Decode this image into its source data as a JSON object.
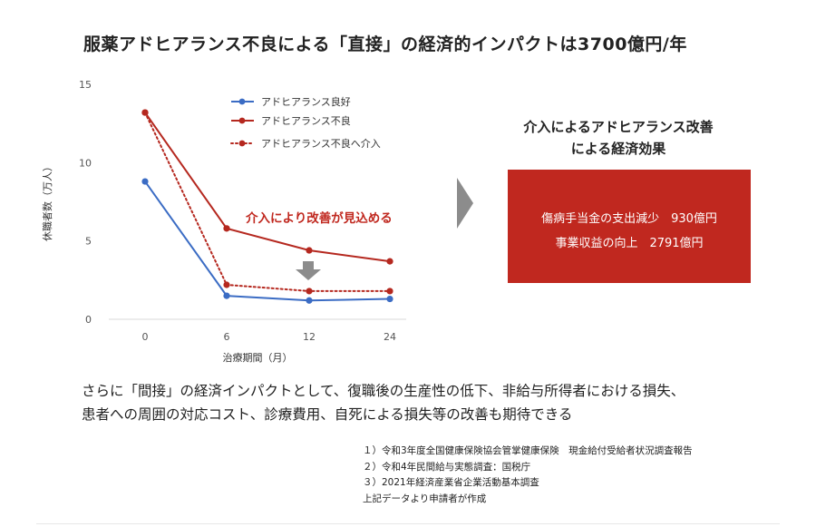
{
  "title": "服薬アドヒアランス不良による「直接」の経済的インパクトは3700億円/年",
  "chart_data": {
    "type": "line",
    "xlabel": "治療期間（月）",
    "ylabel": "休職者数（万人）",
    "x": [
      0,
      6,
      12,
      24
    ],
    "ylim": [
      0,
      15
    ],
    "yticks": [
      0,
      5,
      10,
      15
    ],
    "grid": false,
    "legend_position": "top-left",
    "series": [
      {
        "name": "アドヒアランス良好",
        "values": [
          8.8,
          1.5,
          1.2,
          1.3
        ],
        "color": "#3b6cc4",
        "style": "solid"
      },
      {
        "name": "アドヒアランス不良",
        "values": [
          13.2,
          5.8,
          4.4,
          3.7
        ],
        "color": "#b5281f",
        "style": "solid"
      },
      {
        "name": "アドヒアランス不良へ介入",
        "values": [
          13.2,
          2.2,
          1.8,
          1.8
        ],
        "color": "#b5281f",
        "style": "dotted"
      }
    ],
    "annotation": "介入により改善が見込める",
    "annotation_color": "#c0281f",
    "marker_arrow_color": "#8c8c8c"
  },
  "effect": {
    "heading_line1": "介入によるアドヒアランス改善",
    "heading_line2": "による経済効果",
    "item1": "傷病手当金の支出減少　930億円",
    "item2": "事業収益の向上　2791億円",
    "box_color": "#c0281f"
  },
  "body": {
    "line1": "さらに「間接」の経済インパクトとして、復職後の生産性の低下、非給与所得者における損失、",
    "line2": "患者への周囲の対応コスト、診療費用、自死による損失等の改善も期待できる"
  },
  "notes": [
    "１）令和3年度全国健康保険協会管掌健康保険　現金給付受給者状況調査報告",
    "２）令和4年民間給与実態調査：国税庁",
    "３）2021年経済産業省企業活動基本調査",
    "上記データより申請者が作成"
  ]
}
